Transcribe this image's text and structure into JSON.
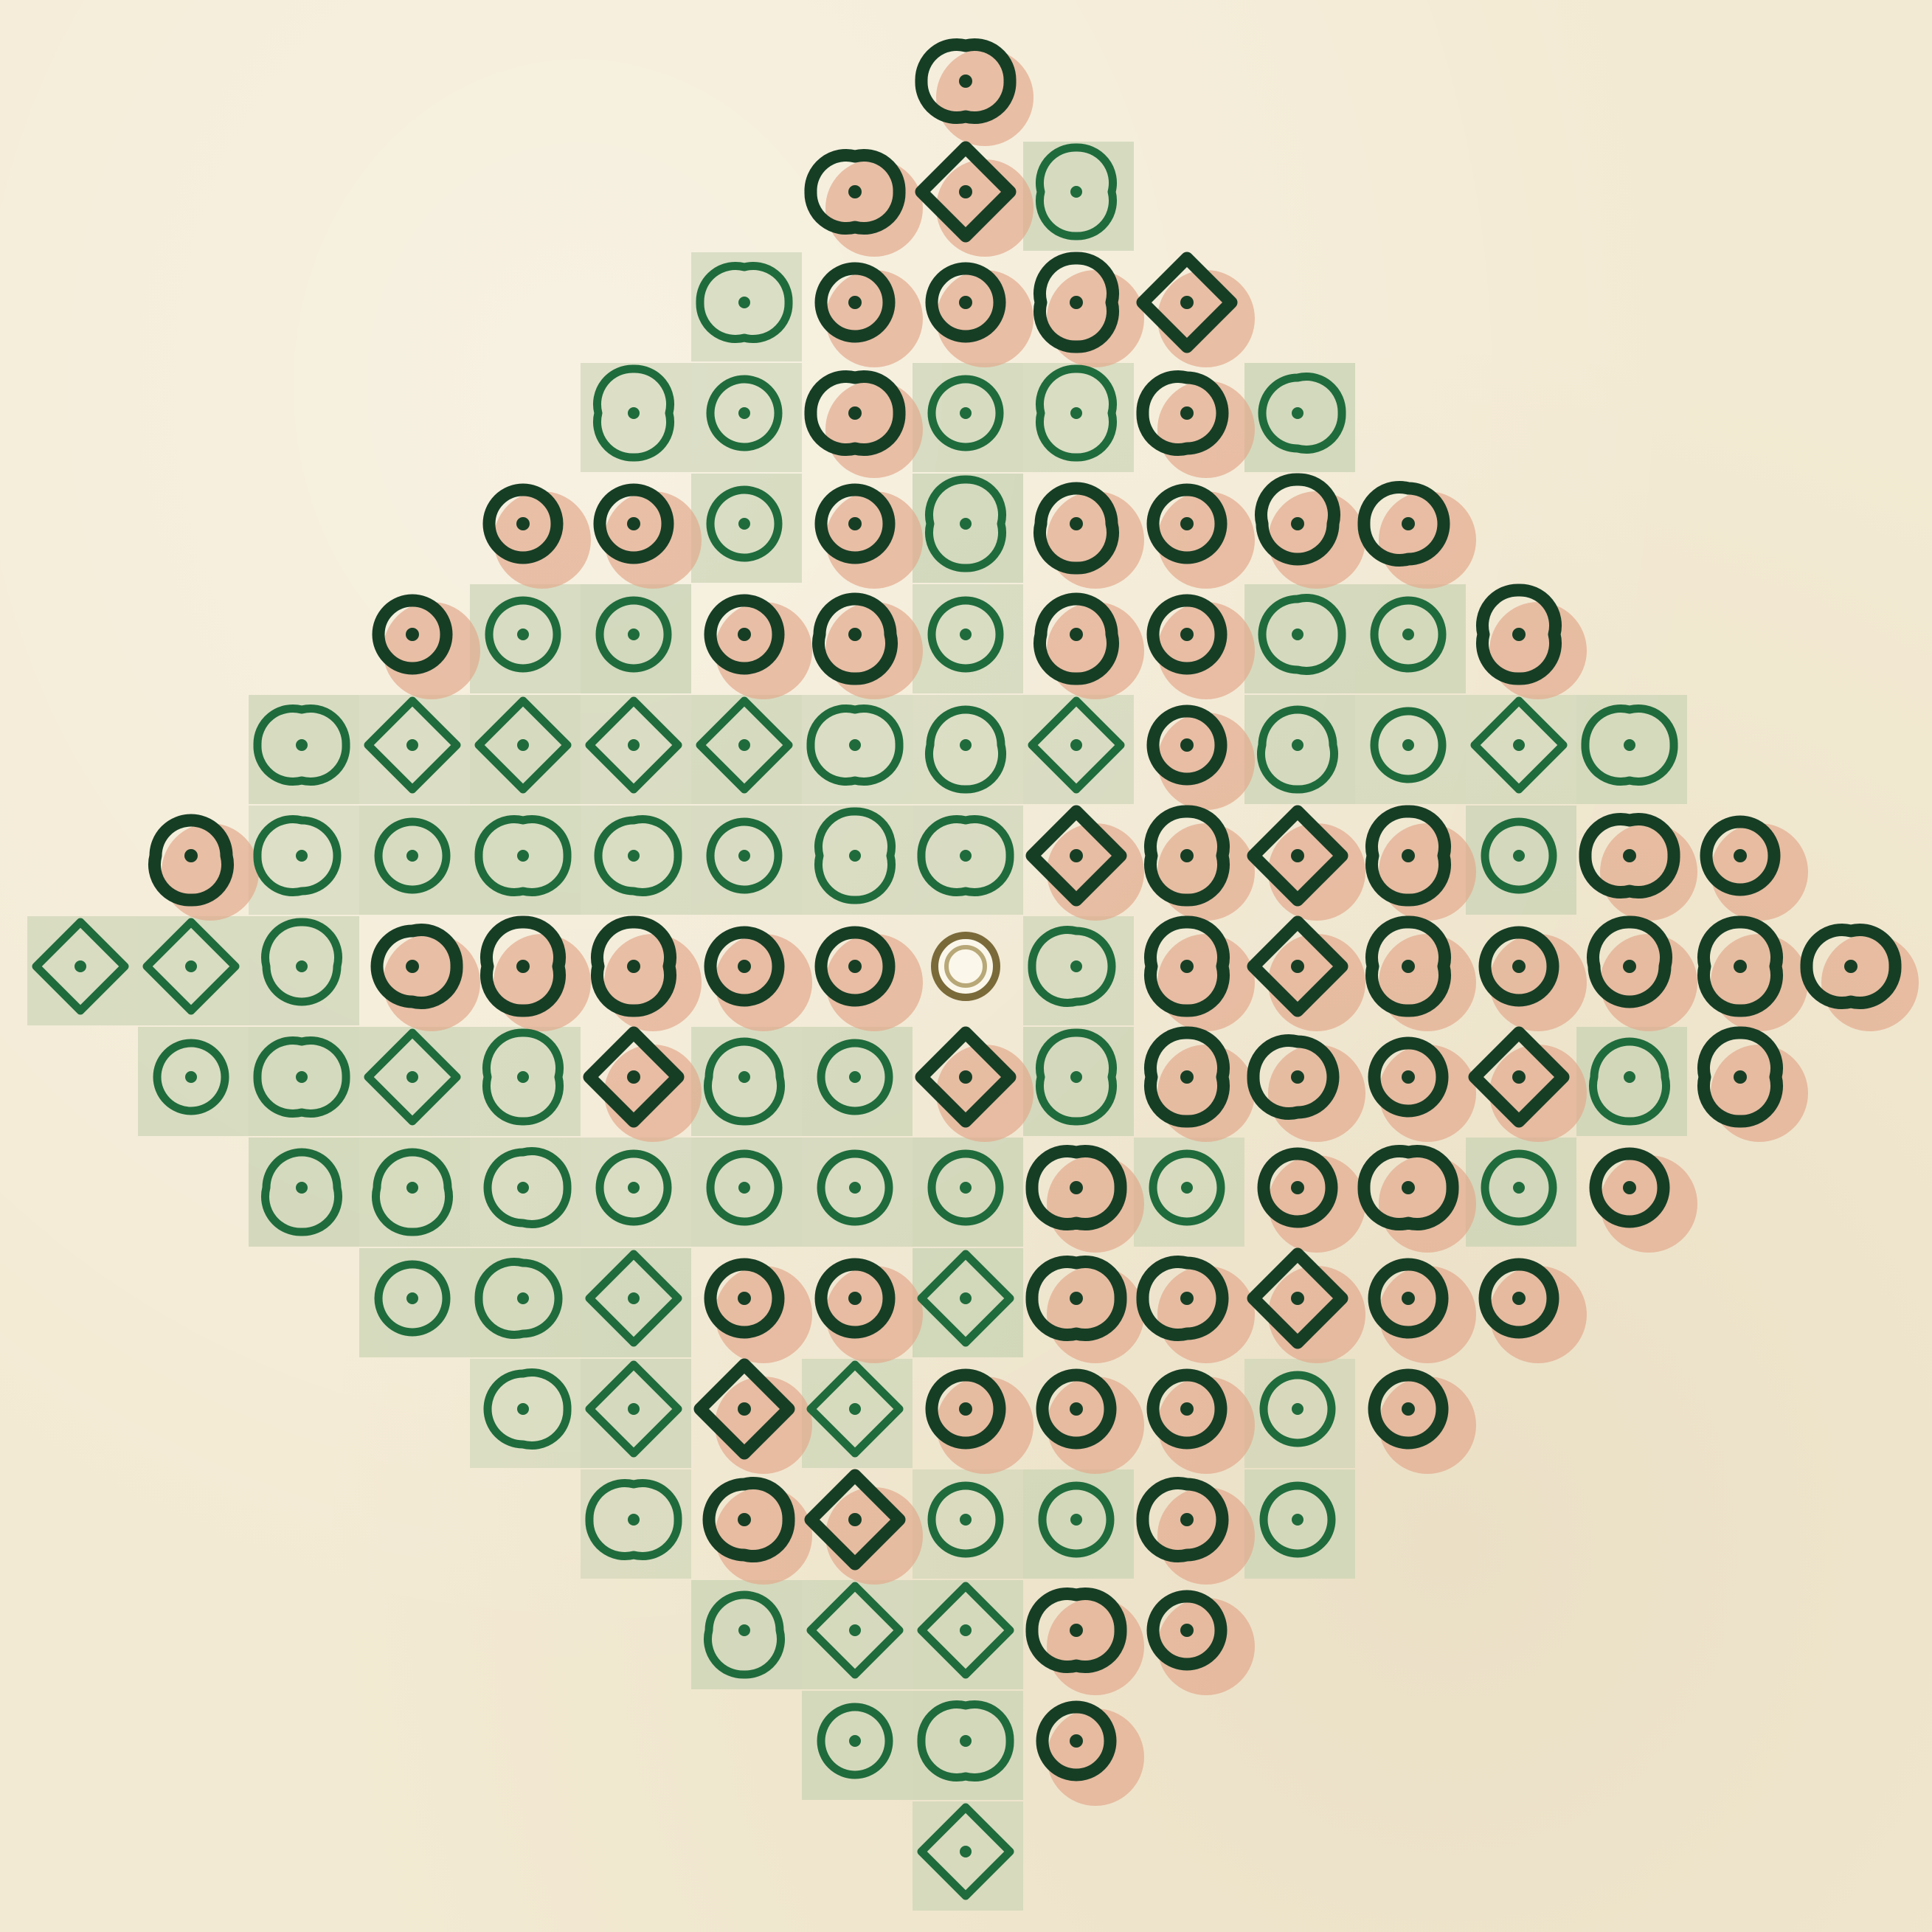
{
  "colors": {
    "paper": "#f3ead3",
    "greenSquare": "#c9d3b4",
    "salmonShadow": "#e2a98d",
    "lightGreenInk": "#1f6b3c",
    "darkGreenInk": "#163e25",
    "centerRing": "#7a6a3a",
    "centerFill": "#fbf7ea"
  },
  "motif": {
    "name": "diamond-dot-grid",
    "rowWidths": [
      1,
      3,
      5,
      7,
      9,
      11,
      13,
      15,
      17,
      15,
      13,
      11,
      9,
      7,
      5,
      3,
      1
    ],
    "centerRow": 8,
    "centerCol": 8,
    "darkRule": "pseudo-random-pattern",
    "shapes": [
      "circle",
      "teardrop",
      "diamond"
    ]
  }
}
